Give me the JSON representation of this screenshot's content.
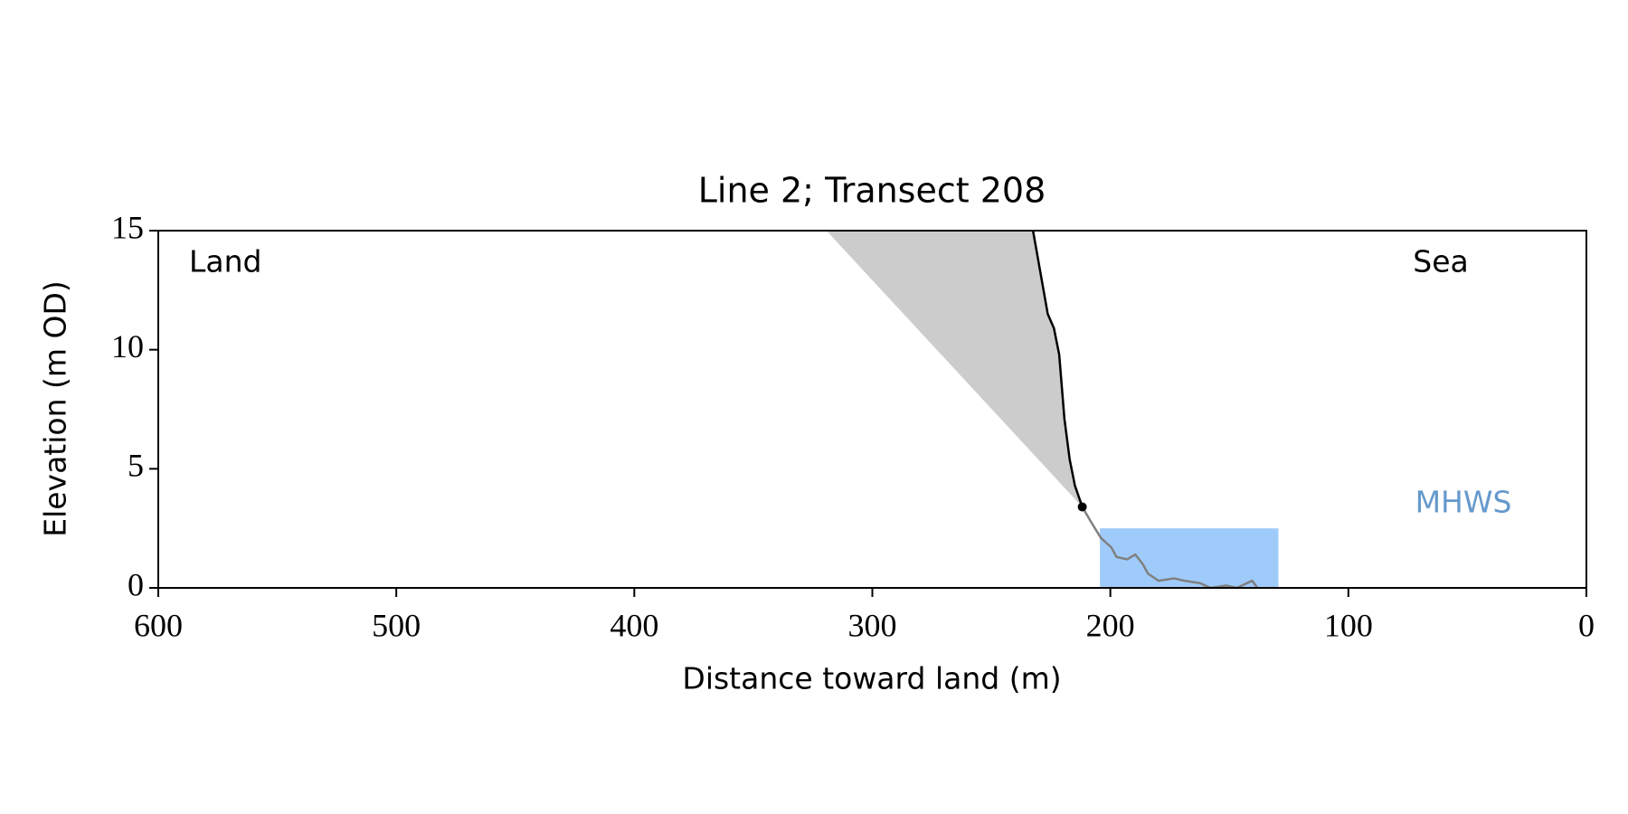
{
  "chart_data": {
    "type": "line",
    "title": "Line 2; Transect 208",
    "xlabel": "Distance toward land (m)",
    "ylabel": "Elevation (m OD)",
    "xlim": [
      600,
      0
    ],
    "ylim": [
      0,
      15
    ],
    "xticks": [
      600,
      500,
      400,
      300,
      200,
      100,
      0
    ],
    "yticks": [
      0,
      5,
      10,
      15
    ],
    "grid": false,
    "annotations": [
      "Land",
      "Sea"
    ],
    "shade": {
      "color": "#cccccc",
      "x": [
        319.3,
        232.5,
        226.3,
        223.7,
        221.5,
        219.3,
        217.1,
        214.9,
        211.8
      ],
      "values": [
        15,
        15,
        11.5,
        10.9,
        9.8,
        7.1,
        5.4,
        4.3,
        3.4
      ]
    },
    "band": {
      "label": "MHWS",
      "color": "#9fcbfa",
      "label_color": "#6699cc",
      "x": [
        204.4,
        129.4
      ],
      "values": [
        0,
        2.5
      ]
    },
    "series": [
      {
        "color": "#000000",
        "x": [
          232.5,
          226.3,
          223.7,
          221.5,
          219.3,
          217.1,
          214.9,
          211.8
        ],
        "values": [
          15,
          11.5,
          10.9,
          9.8,
          7.1,
          5.4,
          4.3,
          3.4
        ]
      },
      {
        "color": "#808080",
        "x": [
          211.8,
          208.3,
          204,
          199.6,
          197.4,
          193,
          189.5,
          186.4,
          184.2,
          179.8,
          173.2,
          168.9,
          162.3,
          157.9,
          151.3,
          146.9,
          140.4,
          138.2
        ],
        "values": [
          3.4,
          2.8,
          2.1,
          1.7,
          1.3,
          1.2,
          1.4,
          1.0,
          0.6,
          0.3,
          0.4,
          0.3,
          0.2,
          0,
          0.1,
          0,
          0.3,
          0
        ]
      }
    ],
    "point": {
      "color": "#000000",
      "x": 211.8,
      "value": 3.4
    }
  }
}
